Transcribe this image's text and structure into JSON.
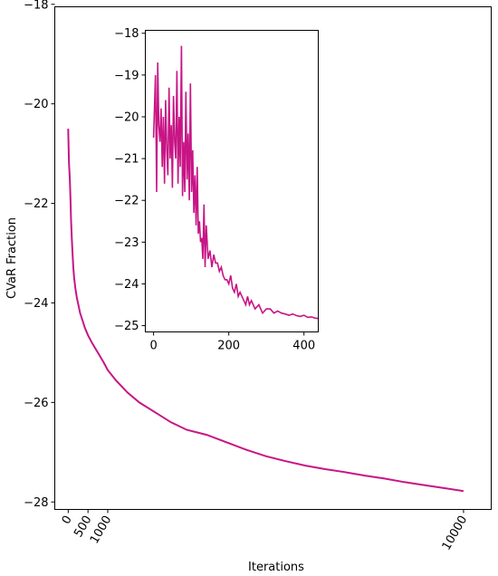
{
  "chart_data": {
    "type": "line",
    "series_color": "#c71585",
    "main": {
      "xlabel": "Iterations",
      "ylabel": "CVaR Fraction",
      "xlim": [
        -340,
        10700
      ],
      "ylim": [
        -28.15,
        -18.05
      ],
      "xticks": [
        0,
        500,
        1000,
        10000
      ],
      "xtick_labels": [
        "0",
        "500",
        "1000",
        "10000"
      ],
      "yticks": [
        -28,
        -26,
        -24,
        -22,
        -20,
        -18
      ],
      "ytick_labels": [
        "−28",
        "−26",
        "−24",
        "−22",
        "−20",
        "−18"
      ],
      "curve": {
        "x": [
          0,
          20,
          40,
          60,
          70,
          90,
          110,
          130,
          150,
          180,
          220,
          260,
          300,
          360,
          420,
          500,
          600,
          750,
          900,
          1000,
          1200,
          1500,
          1800,
          2200,
          2600,
          3000,
          3500,
          4000,
          4500,
          5000,
          5500,
          6000,
          6500,
          7000,
          7500,
          8000,
          8500,
          9000,
          9500,
          10000
        ],
        "y": [
          -20.5,
          -21.2,
          -21.5,
          -22.0,
          -22.3,
          -22.7,
          -23.0,
          -23.3,
          -23.5,
          -23.7,
          -23.9,
          -24.05,
          -24.2,
          -24.35,
          -24.5,
          -24.65,
          -24.8,
          -25.0,
          -25.2,
          -25.35,
          -25.55,
          -25.8,
          -26.0,
          -26.2,
          -26.4,
          -26.55,
          -26.65,
          -26.8,
          -26.95,
          -27.08,
          -27.18,
          -27.27,
          -27.34,
          -27.4,
          -27.47,
          -27.53,
          -27.6,
          -27.66,
          -27.72,
          -27.78
        ]
      }
    },
    "inset": {
      "xlim": [
        -22,
        438
      ],
      "ylim": [
        -25.15,
        -17.93
      ],
      "xticks": [
        0,
        200,
        400
      ],
      "xtick_labels": [
        "0",
        "200",
        "400"
      ],
      "yticks": [
        -25,
        -24,
        -23,
        -22,
        -21,
        -20,
        -19,
        -18
      ],
      "ytick_labels": [
        "−25",
        "−24",
        "−23",
        "−22",
        "−21",
        "−20",
        "−19",
        "−18"
      ],
      "curve": {
        "x": [
          0,
          5,
          8,
          11,
          14,
          17,
          20,
          23,
          26,
          29,
          32,
          35,
          38,
          41,
          44,
          47,
          50,
          53,
          56,
          59,
          62,
          65,
          68,
          71,
          74,
          77,
          80,
          83,
          86,
          89,
          92,
          95,
          98,
          101,
          104,
          107,
          110,
          113,
          116,
          119,
          122,
          125,
          128,
          131,
          134,
          137,
          140,
          145,
          150,
          155,
          160,
          165,
          170,
          175,
          180,
          185,
          190,
          195,
          200,
          205,
          210,
          215,
          220,
          225,
          230,
          235,
          240,
          245,
          250,
          255,
          260,
          270,
          280,
          290,
          300,
          310,
          320,
          330,
          340,
          350,
          360,
          370,
          380,
          390,
          400,
          410,
          420,
          430,
          438
        ],
        "y": [
          -20.5,
          -19.0,
          -21.8,
          -18.7,
          -20.2,
          -20.6,
          -19.8,
          -21.2,
          -20.0,
          -21.6,
          -19.6,
          -20.8,
          -21.4,
          -19.3,
          -21.0,
          -20.2,
          -21.7,
          -19.5,
          -20.6,
          -21.0,
          -18.9,
          -21.6,
          -20.0,
          -21.2,
          -18.3,
          -21.9,
          -20.6,
          -21.8,
          -19.4,
          -21.5,
          -20.4,
          -22.0,
          -19.2,
          -21.8,
          -20.8,
          -22.3,
          -21.4,
          -22.6,
          -21.2,
          -22.8,
          -22.5,
          -23.0,
          -22.9,
          -23.4,
          -22.1,
          -23.6,
          -22.6,
          -23.4,
          -23.2,
          -23.6,
          -23.3,
          -23.5,
          -23.5,
          -23.7,
          -23.6,
          -23.8,
          -23.9,
          -23.9,
          -24.0,
          -23.8,
          -24.1,
          -24.2,
          -24.0,
          -24.3,
          -24.2,
          -24.3,
          -24.4,
          -24.5,
          -24.3,
          -24.5,
          -24.4,
          -24.6,
          -24.5,
          -24.7,
          -24.6,
          -24.6,
          -24.7,
          -24.65,
          -24.7,
          -24.72,
          -24.75,
          -24.72,
          -24.76,
          -24.78,
          -24.75,
          -24.8,
          -24.79,
          -24.82,
          -24.83
        ]
      }
    }
  }
}
